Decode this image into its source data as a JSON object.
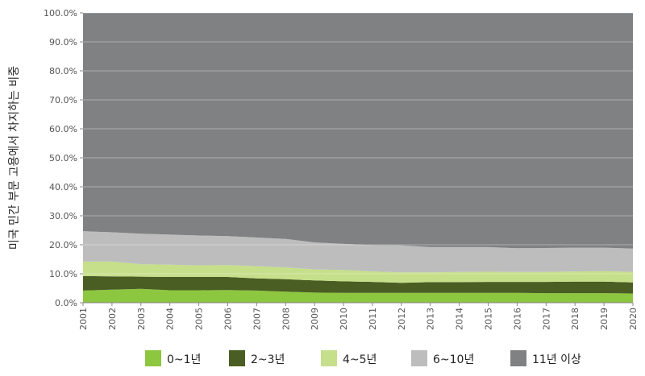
{
  "chart_data": {
    "type": "area",
    "stacked": true,
    "title": "",
    "xlabel": "",
    "ylabel": "미국 민간 부문 고용에서 차지하는 비중",
    "ylim": [
      0,
      100
    ],
    "yticks": [
      "0.0%",
      "10.0%",
      "20.0%",
      "30.0%",
      "40.0%",
      "50.0%",
      "60.0%",
      "70.0%",
      "80.0%",
      "90.0%",
      "100.0%"
    ],
    "x": [
      "2001",
      "2002",
      "2003",
      "2004",
      "2005",
      "2006",
      "2007",
      "2008",
      "2009",
      "2010",
      "2011",
      "2012",
      "2013",
      "2014",
      "2015",
      "2016",
      "2017",
      "2018",
      "2019",
      "2020"
    ],
    "series": [
      {
        "name": "0~1년",
        "color": "#8dc63f",
        "values": [
          4.2,
          4.5,
          4.8,
          4.3,
          4.3,
          4.4,
          4.2,
          3.8,
          3.5,
          3.4,
          3.4,
          3.4,
          3.4,
          3.4,
          3.4,
          3.4,
          3.3,
          3.3,
          3.3,
          3.2
        ]
      },
      {
        "name": "2~3년",
        "color": "#4a5e23",
        "values": [
          5.0,
          4.6,
          4.2,
          4.6,
          4.6,
          4.5,
          4.2,
          4.3,
          4.2,
          4.0,
          3.8,
          3.5,
          3.7,
          3.7,
          3.8,
          3.8,
          3.9,
          4.0,
          4.0,
          3.8
        ]
      },
      {
        "name": "4~5년",
        "color": "#c5df8a",
        "values": [
          5.0,
          5.1,
          4.3,
          4.2,
          4.0,
          4.1,
          4.2,
          4.1,
          3.8,
          3.9,
          3.6,
          3.6,
          3.4,
          3.5,
          3.5,
          3.4,
          3.4,
          3.5,
          3.6,
          3.6
        ]
      },
      {
        "name": "6~10년",
        "color": "#bdbdbd",
        "values": [
          10.5,
          10.1,
          10.5,
          10.4,
          10.3,
          10.0,
          9.9,
          9.8,
          9.3,
          9.0,
          9.1,
          9.3,
          8.7,
          8.6,
          8.5,
          8.2,
          8.3,
          8.2,
          8.1,
          8.1
        ]
      },
      {
        "name": "11년 이상",
        "color": "#7f8183",
        "values": [
          75.3,
          75.7,
          76.2,
          76.5,
          76.8,
          77.0,
          77.5,
          78.0,
          79.2,
          79.7,
          80.1,
          80.2,
          80.8,
          80.8,
          80.8,
          81.2,
          81.1,
          81.0,
          81.0,
          81.3
        ]
      }
    ],
    "legend": {
      "position": "bottom",
      "labels": [
        "0~1년",
        "2~3년",
        "4~5년",
        "6~10년",
        "11년 이상"
      ]
    }
  }
}
